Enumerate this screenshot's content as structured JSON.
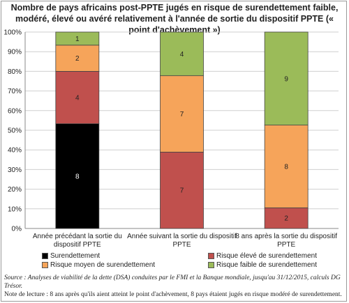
{
  "title": "Nombre de pays africains post-PPTE jugés en risque de surendettement faible, modéré, élevé ou avéré relativement à l'année de sortie du dispositif PPTE (« point d'achèvement »)",
  "colors": {
    "surendettement": "#000000",
    "risque_eleve": "#c0504d",
    "risque_moyen": "#f6a45a",
    "risque_faible": "#9bbb59"
  },
  "chart_data": {
    "type": "bar",
    "stacked": "percent",
    "title": "Nombre de pays africains post-PPTE jugés en risque de surendettement faible, modéré, élevé ou avéré relativement à l'année de sortie du dispositif PPTE (« point d'achèvement »)",
    "categories": [
      "Année précédant la sortie du dispositif PPTE",
      "Année suivant la sortie du dispositif PPTE",
      "8 ans après la sortie du dispositif PPTE"
    ],
    "category_lines": [
      [
        "Année précédant la sortie du",
        "dispositif PPTE"
      ],
      [
        "Année suivant la sortie du dispositif",
        "PPTE"
      ],
      [
        "8 ans après la sortie du dispositif",
        "PPTE"
      ]
    ],
    "series": [
      {
        "name": "Surendettement",
        "values": [
          8,
          0,
          0
        ]
      },
      {
        "name": "Risque élevé de surendettement",
        "values": [
          4,
          7,
          2
        ]
      },
      {
        "name": "Risque moyen de surendettement",
        "values": [
          2,
          7,
          8
        ]
      },
      {
        "name": "Risque faible de surendettement",
        "values": [
          1,
          4,
          9
        ]
      }
    ],
    "yticks": [
      "0%",
      "10%",
      "20%",
      "30%",
      "40%",
      "50%",
      "60%",
      "70%",
      "80%",
      "90%",
      "100%"
    ],
    "ylim": [
      0,
      100
    ],
    "grid": true,
    "legend": "bottom"
  },
  "legend": [
    {
      "label": "Surendettement",
      "color": "#000000"
    },
    {
      "label": "Risque élevé de surendettement",
      "color": "#c0504d"
    },
    {
      "label": "Risque moyen de surendettement",
      "color": "#f6a45a"
    },
    {
      "label": "Risque faible de surendettement",
      "color": "#9bbb59"
    }
  ],
  "source": {
    "label": "Source : Analyses de viabilité de la dette (DSA) conduites par le FMI et la Banque mondiale, jusqu'au 31/12/2015, calculs DG Trésor.",
    "note": "Note de lecture : 8 ans après qu'ils aient atteint le point d'achèvement, 8 pays étaient jugés en risque modéré de surendettement."
  }
}
